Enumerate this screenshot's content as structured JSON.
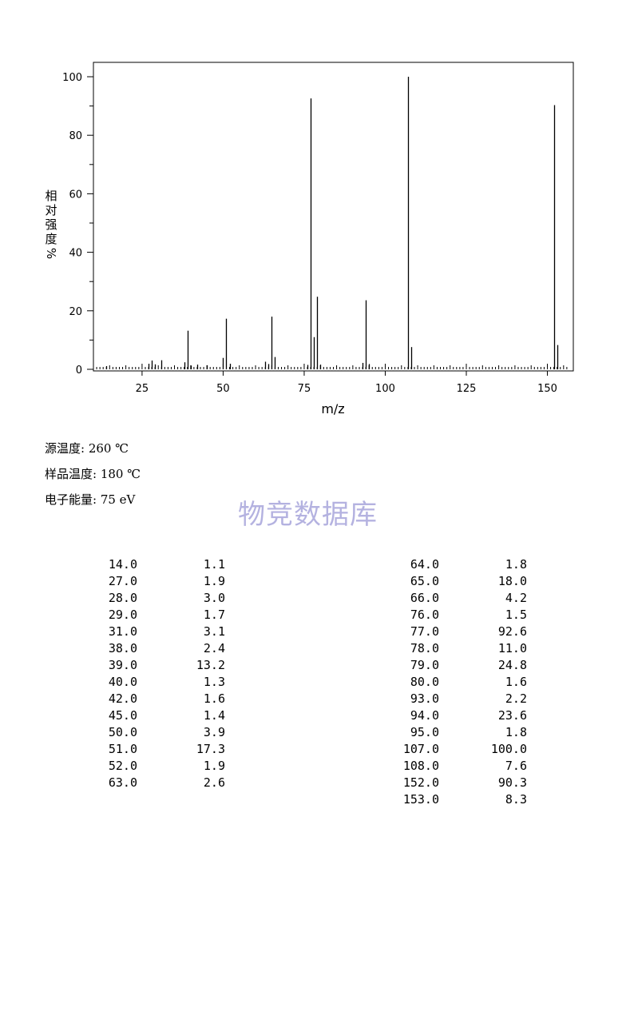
{
  "chart_data": {
    "type": "bar",
    "xlabel": "m/z",
    "ylabel": "相对强度%",
    "xlim": [
      10,
      158
    ],
    "ylim": [
      0,
      105
    ],
    "x_ticks": [
      25,
      50,
      75,
      100,
      125,
      150
    ],
    "y_ticks": [
      0,
      20,
      40,
      60,
      80,
      100
    ],
    "grid": false,
    "peaks": [
      {
        "mz": 14.0,
        "intensity": 1.1
      },
      {
        "mz": 27.0,
        "intensity": 1.9
      },
      {
        "mz": 28.0,
        "intensity": 3.0
      },
      {
        "mz": 29.0,
        "intensity": 1.7
      },
      {
        "mz": 31.0,
        "intensity": 3.1
      },
      {
        "mz": 38.0,
        "intensity": 2.4
      },
      {
        "mz": 39.0,
        "intensity": 13.2
      },
      {
        "mz": 40.0,
        "intensity": 1.3
      },
      {
        "mz": 42.0,
        "intensity": 1.6
      },
      {
        "mz": 45.0,
        "intensity": 1.4
      },
      {
        "mz": 50.0,
        "intensity": 3.9
      },
      {
        "mz": 51.0,
        "intensity": 17.3
      },
      {
        "mz": 52.0,
        "intensity": 1.9
      },
      {
        "mz": 63.0,
        "intensity": 2.6
      },
      {
        "mz": 64.0,
        "intensity": 1.8
      },
      {
        "mz": 65.0,
        "intensity": 18.0
      },
      {
        "mz": 66.0,
        "intensity": 4.2
      },
      {
        "mz": 76.0,
        "intensity": 1.5
      },
      {
        "mz": 77.0,
        "intensity": 92.6
      },
      {
        "mz": 78.0,
        "intensity": 11.0
      },
      {
        "mz": 79.0,
        "intensity": 24.8
      },
      {
        "mz": 80.0,
        "intensity": 1.6
      },
      {
        "mz": 93.0,
        "intensity": 2.2
      },
      {
        "mz": 94.0,
        "intensity": 23.6
      },
      {
        "mz": 95.0,
        "intensity": 1.8
      },
      {
        "mz": 107.0,
        "intensity": 100.0
      },
      {
        "mz": 108.0,
        "intensity": 7.6
      },
      {
        "mz": 152.0,
        "intensity": 90.3
      },
      {
        "mz": 153.0,
        "intensity": 8.3
      }
    ]
  },
  "conditions": {
    "source_temp": "源温度: 260 ℃",
    "sample_temp": "样品温度: 180 ℃",
    "electron_energy": "电子能量: 75 eV"
  },
  "watermark": "物竞数据库",
  "peak_table": {
    "left": [
      [
        "14.0",
        "1.1"
      ],
      [
        "27.0",
        "1.9"
      ],
      [
        "28.0",
        "3.0"
      ],
      [
        "29.0",
        "1.7"
      ],
      [
        "31.0",
        "3.1"
      ],
      [
        "38.0",
        "2.4"
      ],
      [
        "39.0",
        "13.2"
      ],
      [
        "40.0",
        "1.3"
      ],
      [
        "42.0",
        "1.6"
      ],
      [
        "45.0",
        "1.4"
      ],
      [
        "50.0",
        "3.9"
      ],
      [
        "51.0",
        "17.3"
      ],
      [
        "52.0",
        "1.9"
      ],
      [
        "63.0",
        "2.6"
      ]
    ],
    "right": [
      [
        "64.0",
        "1.8"
      ],
      [
        "65.0",
        "18.0"
      ],
      [
        "66.0",
        "4.2"
      ],
      [
        "76.0",
        "1.5"
      ],
      [
        "77.0",
        "92.6"
      ],
      [
        "78.0",
        "11.0"
      ],
      [
        "79.0",
        "24.8"
      ],
      [
        "80.0",
        "1.6"
      ],
      [
        "93.0",
        "2.2"
      ],
      [
        "94.0",
        "23.6"
      ],
      [
        "95.0",
        "1.8"
      ],
      [
        "107.0",
        "100.0"
      ],
      [
        "108.0",
        "7.6"
      ],
      [
        "152.0",
        "90.3"
      ],
      [
        "153.0",
        "8.3"
      ]
    ]
  }
}
